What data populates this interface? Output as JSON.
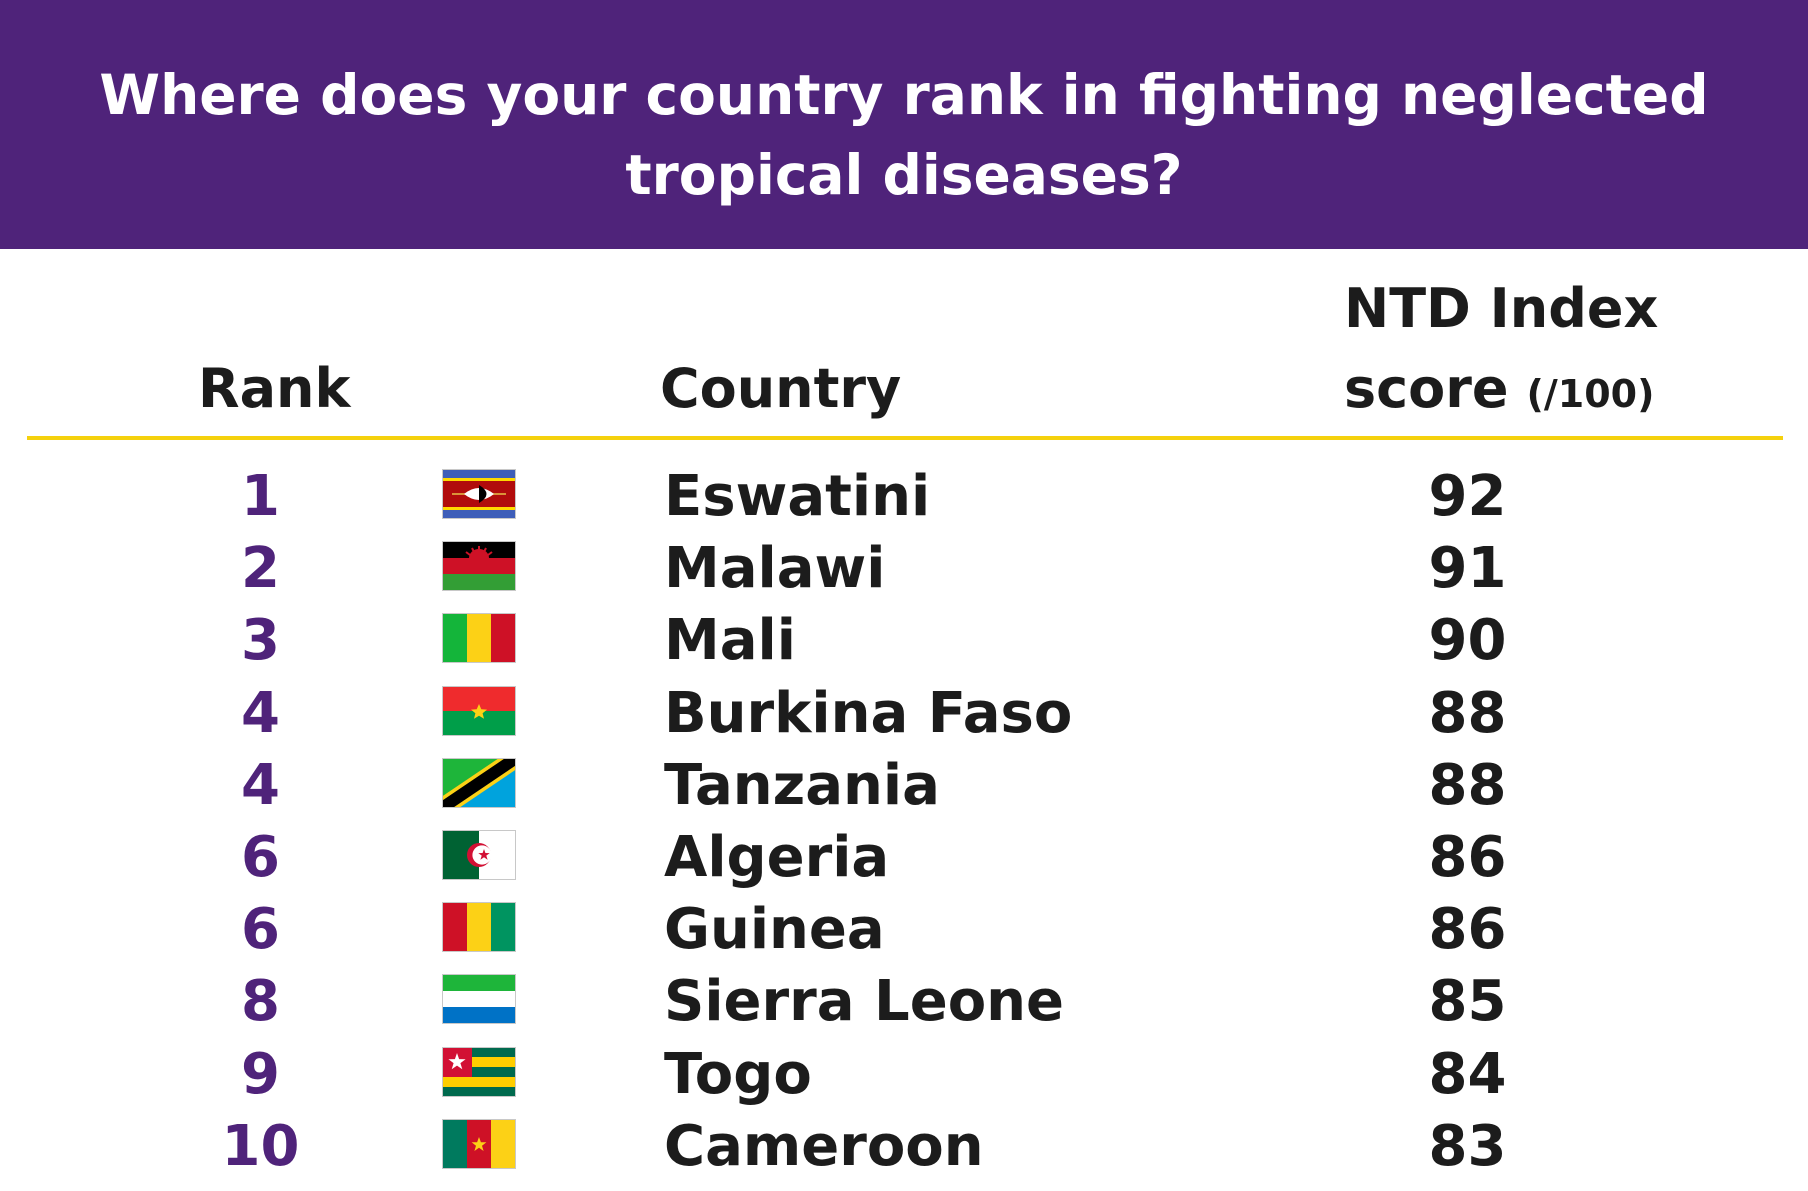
{
  "header": {
    "title_line1": "Where does your country rank in fighting neglected",
    "title_line2": "tropical diseases?",
    "background": "#4f237a"
  },
  "columns": {
    "rank": "Rank",
    "country": "Country",
    "score_line1": "NTD Index",
    "score_line2": "score",
    "score_unit": "(/100)"
  },
  "accent_colors": {
    "rank": "#4f237a",
    "rule": "#f5d10d"
  },
  "chart_data": {
    "type": "table",
    "title": "Where does your country rank in fighting neglected tropical diseases?",
    "columns": [
      "Rank",
      "Country",
      "NTD Index score (/100)"
    ],
    "rows": [
      {
        "rank": "1",
        "country": "Eswatini",
        "score": 92,
        "flag": "eswatini-flag"
      },
      {
        "rank": "2",
        "country": "Malawi",
        "score": 91,
        "flag": "malawi-flag"
      },
      {
        "rank": "3",
        "country": "Mali",
        "score": 90,
        "flag": "mali-flag"
      },
      {
        "rank": "4",
        "country": "Burkina Faso",
        "score": 88,
        "flag": "burkina-faso-flag"
      },
      {
        "rank": "4",
        "country": "Tanzania",
        "score": 88,
        "flag": "tanzania-flag"
      },
      {
        "rank": "6",
        "country": "Algeria",
        "score": 86,
        "flag": "algeria-flag"
      },
      {
        "rank": "6",
        "country": "Guinea",
        "score": 86,
        "flag": "guinea-flag"
      },
      {
        "rank": "8",
        "country": "Sierra Leone",
        "score": 85,
        "flag": "sierra-leone-flag"
      },
      {
        "rank": "9",
        "country": "Togo",
        "score": 84,
        "flag": "togo-flag"
      },
      {
        "rank": "10",
        "country": "Cameroon",
        "score": 83,
        "flag": "cameroon-flag"
      }
    ]
  }
}
